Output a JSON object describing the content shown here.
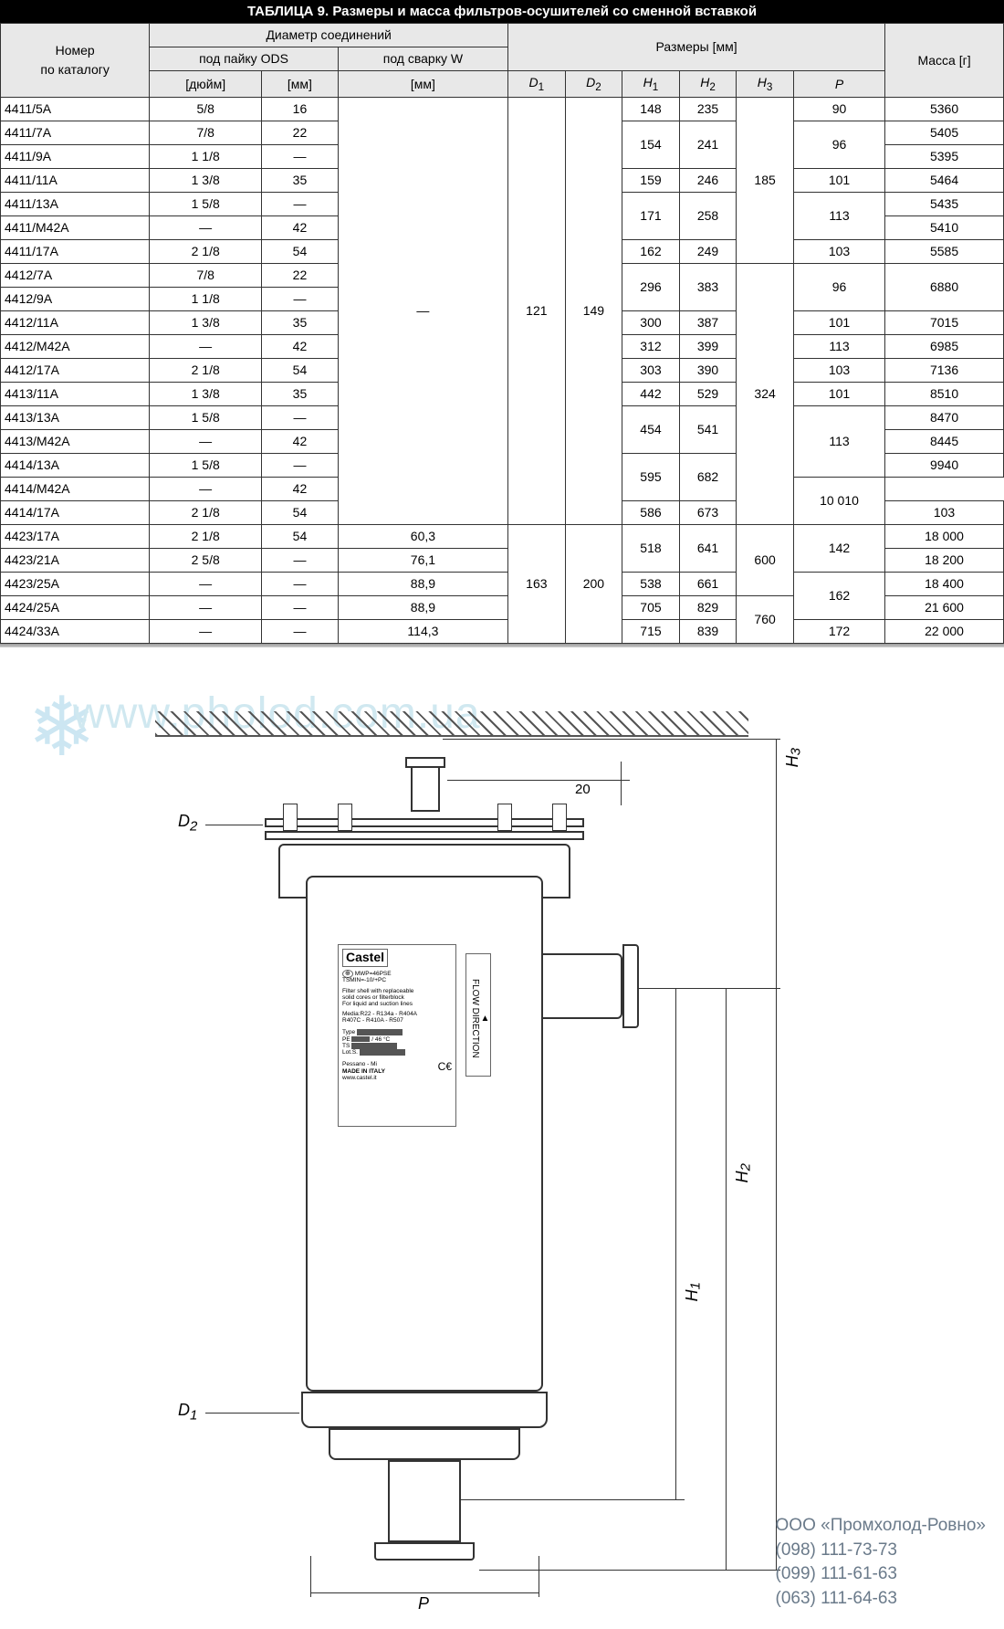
{
  "title": "ТАБЛИЦА 9. Размеры и масса фильтров-осушителей со сменной вставкой",
  "headers": {
    "catalog": "Номер\nпо каталогу",
    "conn_diam": "Диаметр соединений",
    "ods": "под пайку ODS",
    "weld": "под сварку W",
    "dims": "Размеры [мм]",
    "mass": "Масса [г]",
    "inch": "[дюйм]",
    "mm": "[мм]",
    "D1": "D",
    "D1s": "1",
    "D2": "D",
    "D2s": "2",
    "H1": "H",
    "H1s": "1",
    "H2": "H",
    "H2s": "2",
    "H3": "H",
    "H3s": "3",
    "P": "P"
  },
  "block1": {
    "D1": "121",
    "D2": "149",
    "weldW": "—",
    "H3a": "185",
    "H3b": "324",
    "rows": [
      {
        "n": "4411/5A",
        "in": "5/8",
        "mm": "16",
        "H1": "148",
        "H2": "235",
        "P": "90",
        "m": "5360",
        "pr": 1,
        "h1r": 1
      },
      {
        "n": "4411/7A",
        "in": "7/8",
        "mm": "22",
        "H1": "154",
        "H2": "241",
        "P": "96",
        "m": "5405",
        "pr": 2,
        "h1r": 2
      },
      {
        "n": "4411/9A",
        "in": "1 1/8",
        "mm": "—",
        "m": "5395"
      },
      {
        "n": "4411/11A",
        "in": "1 3/8",
        "mm": "35",
        "H1": "159",
        "H2": "246",
        "P": "101",
        "m": "5464",
        "pr": 1,
        "h1r": 1
      },
      {
        "n": "4411/13A",
        "in": "1 5/8",
        "mm": "—",
        "H1": "171",
        "H2": "258",
        "P": "113",
        "m": "5435",
        "pr": 2,
        "h1r": 2
      },
      {
        "n": "4411/M42A",
        "in": "—",
        "mm": "42",
        "m": "5410"
      },
      {
        "n": "4411/17A",
        "in": "2 1/8",
        "mm": "54",
        "H1": "162",
        "H2": "249",
        "P": "103",
        "m": "5585",
        "pr": 1,
        "h1r": 1
      },
      {
        "n": "4412/7A",
        "in": "7/8",
        "mm": "22",
        "H1": "296",
        "H2": "383",
        "P": "96",
        "m": "6880",
        "pr": 2,
        "h1r": 2,
        "mr": 2
      },
      {
        "n": "4412/9A",
        "in": "1 1/8",
        "mm": "—"
      },
      {
        "n": "4412/11A",
        "in": "1 3/8",
        "mm": "35",
        "H1": "300",
        "H2": "387",
        "P": "101",
        "m": "7015",
        "pr": 1,
        "h1r": 1
      },
      {
        "n": "4412/M42A",
        "in": "—",
        "mm": "42",
        "H1": "312",
        "H2": "399",
        "P": "113",
        "m": "6985",
        "pr": 1,
        "h1r": 1
      },
      {
        "n": "4412/17A",
        "in": "2 1/8",
        "mm": "54",
        "H1": "303",
        "H2": "390",
        "P": "103",
        "m": "7136",
        "pr": 1,
        "h1r": 1
      },
      {
        "n": "4413/11A",
        "in": "1 3/8",
        "mm": "35",
        "H1": "442",
        "H2": "529",
        "P": "101",
        "m": "8510",
        "pr": 1,
        "h1r": 1
      },
      {
        "n": "4413/13A",
        "in": "1 5/8",
        "mm": "—",
        "H1": "454",
        "H2": "541",
        "P": "113",
        "m": "8470",
        "pr": 3,
        "h1r": 2
      },
      {
        "n": "4413/M42A",
        "in": "—",
        "mm": "42",
        "m": "8445"
      },
      {
        "n": "4414/13A",
        "in": "1 5/8",
        "mm": "—",
        "H1": "595",
        "H2": "682",
        "m": "9940",
        "h1r": 2
      },
      {
        "n": "4414/M42A",
        "in": "—",
        "mm": "42",
        "m": "10 010",
        "mr": 2
      },
      {
        "n": "4414/17A",
        "in": "2 1/8",
        "mm": "54",
        "H1": "586",
        "H2": "673",
        "P": "103",
        "pr": 1,
        "h1r": 1
      }
    ]
  },
  "block2": {
    "D1": "163",
    "D2": "200",
    "H3a": "600",
    "H3b": "760",
    "rows": [
      {
        "n": "4423/17A",
        "in": "2 1/8",
        "mm": "54",
        "w": "60,3",
        "H1": "518",
        "H2": "641",
        "P": "142",
        "m": "18 000",
        "pr": 2,
        "h1r": 2
      },
      {
        "n": "4423/21A",
        "in": "2 5/8",
        "mm": "—",
        "w": "76,1",
        "m": "18 200"
      },
      {
        "n": "4423/25A",
        "in": "—",
        "mm": "—",
        "w": "88,9",
        "H1": "538",
        "H2": "661",
        "P": "162",
        "m": "18 400",
        "pr": 2,
        "h1r": 1
      },
      {
        "n": "4424/25A",
        "in": "—",
        "mm": "—",
        "w": "88,9",
        "H1": "705",
        "H2": "829",
        "m": "21 600",
        "h1r": 1
      },
      {
        "n": "4424/33A",
        "in": "—",
        "mm": "—",
        "w": "114,3",
        "H1": "715",
        "H2": "839",
        "P": "172",
        "m": "22 000",
        "pr": 1,
        "h1r": 1
      }
    ]
  },
  "diagram": {
    "watermark": "www.pholod.com.ua",
    "D1": "D",
    "D1s": "1",
    "D2": "D",
    "D2s": "2",
    "H1": "H",
    "H1s": "1",
    "H2": "H",
    "H2s": "2",
    "H3": "H",
    "H3s": "3",
    "P": "P",
    "twenty": "20",
    "plate_brand": "Castel",
    "plate_l1": "MWP=46PSE",
    "plate_l2": "TSMIN=-10/+PC",
    "plate_l3": "Filter shell with replaceable",
    "plate_l4": "solid cores or filterblock",
    "plate_l5": "For liquid and suction lines",
    "plate_l6": "Media:R22 - R134a - R404A",
    "plate_l7": "R407C - R410A - R507",
    "plate_type": "Type",
    "plate_pe": "PE",
    "plate_ts": "TS",
    "plate_lot": "Lot.S.",
    "plate_loc": "Pessano - Mi",
    "plate_made": "MADE IN ITALY",
    "plate_url": "www.castel.it",
    "plate_ce": "C€",
    "arrow_txt": "FLOW DIRECTION"
  },
  "contact": {
    "name": "ООО «Промхолод-Ровно»",
    "t1": "(098) 111-73-73",
    "t2": "(099) 111-61-63",
    "t3": "(063) 111-64-63"
  }
}
